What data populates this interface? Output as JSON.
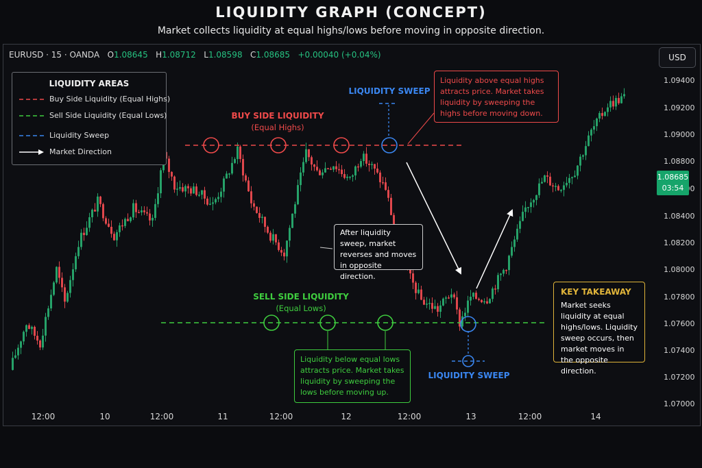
{
  "title": "LIQUIDITY GRAPH (CONCEPT)",
  "subtitle": "Market collects liquidity at equal highs/lows before moving in opposite direction.",
  "header": {
    "symbol": "EURUSD · 15 · OANDA",
    "o_label": "O",
    "o_value": "1.08645",
    "h_label": "H",
    "h_value": "1.08712",
    "l_label": "L",
    "l_value": "1.08598",
    "c_label": "C",
    "c_value": "1.08685",
    "change": "+0.00040 (+0.04%)",
    "currency": "USD"
  },
  "legend": {
    "title": "LIQUIDITY AREAS",
    "items": [
      {
        "label": "Buy Side Liquidity (Equal Highs)",
        "color": "#ef4a4a",
        "style": "dashed"
      },
      {
        "label": "Sell Side Liquidity (Equal Lows)",
        "color": "#3fce3f",
        "style": "dashed"
      },
      {
        "label": "Liquidity Sweep",
        "color": "#3a86f0",
        "style": "dashed"
      },
      {
        "label": "Market Direction",
        "color": "#ffffff",
        "style": "arrow"
      }
    ]
  },
  "annotations": {
    "buy_side_title": "BUY SIDE LIQUIDITY",
    "buy_side_sub": "(Equal Highs)",
    "sell_side_title": "SELL SIDE LIQUIDITY",
    "sell_side_sub": "(Equal Lows)",
    "sweep_top": "LIQUIDITY SWEEP",
    "sweep_bottom": "LIQUIDITY SWEEP",
    "top_note": "Liquidity above equal highs attracts price. Market takes liquidity by sweeping the highs before moving down.",
    "mid_note": "After liquidity sweep, market reverses and moves in opposite direction.",
    "bottom_note": "Liquidity below equal lows attracts price. Market takes liquidity by sweeping the lows before moving up.",
    "takeaway_title": "KEY TAKEAWAY",
    "takeaway_text": "Market seeks liquidity at equal highs/lows. Liquidity sweep occurs, then market moves in the opposite direction."
  },
  "price_tag": {
    "price": "1.08685",
    "timer": "03:54"
  },
  "colors": {
    "bull": "#26a269",
    "bear": "#e0474c",
    "buy_side": "#ef4a4a",
    "sell_side": "#3fce3f",
    "sweep": "#3a86f0",
    "takeaway": "#e0b43a",
    "price_tag": "#16a46a"
  },
  "chart_data": {
    "type": "candlestick",
    "y_ticks": [
      "1.09400",
      "1.09200",
      "1.09000",
      "1.08800",
      "1.08600",
      "1.08400",
      "1.08200",
      "1.08000",
      "1.07800",
      "1.07600",
      "1.07400",
      "1.07200",
      "1.07000"
    ],
    "x_ticks": [
      "12:00",
      "10",
      "12:00",
      "11",
      "12:00",
      "12",
      "12:00",
      "13",
      "12:00",
      "14"
    ],
    "ylim": [
      1.07,
      1.095
    ],
    "buy_side_liquidity_level": 1.0893,
    "sell_side_liquidity_level": 1.0761,
    "equal_highs_at": [
      "11 ~03:00",
      "11 ~14:00",
      "12 ~00:00",
      "12 ~14:00 (sweep)"
    ],
    "equal_lows_at": [
      "11 ~12:00",
      "12 ~00:00",
      "12 ~11:00",
      "13 ~00:00 (sweep)"
    ],
    "path": [
      [
        0,
        1.0725
      ],
      [
        6,
        1.076
      ],
      [
        11,
        1.0745
      ],
      [
        17,
        1.08
      ],
      [
        20,
        1.0775
      ],
      [
        25,
        1.082
      ],
      [
        32,
        1.085
      ],
      [
        38,
        1.0825
      ],
      [
        45,
        1.0845
      ],
      [
        52,
        1.0835
      ],
      [
        56,
        1.0885
      ],
      [
        60,
        1.0862
      ],
      [
        68,
        1.0858
      ],
      [
        74,
        1.0848
      ],
      [
        78,
        1.0864
      ],
      [
        83,
        1.0888
      ],
      [
        88,
        1.085
      ],
      [
        95,
        1.0825
      ],
      [
        100,
        1.0812
      ],
      [
        104,
        1.085
      ],
      [
        108,
        1.0886
      ],
      [
        112,
        1.0872
      ],
      [
        118,
        1.0878
      ],
      [
        124,
        1.0866
      ],
      [
        128,
        1.0884
      ],
      [
        132,
        1.0876
      ],
      [
        137,
        1.086
      ],
      [
        143,
        1.0805
      ],
      [
        150,
        1.0777
      ],
      [
        156,
        1.077
      ],
      [
        161,
        1.0783
      ],
      [
        164,
        1.076
      ],
      [
        168,
        1.0779
      ],
      [
        174,
        1.0778
      ],
      [
        181,
        1.0803
      ],
      [
        188,
        1.0845
      ],
      [
        195,
        1.0868
      ],
      [
        200,
        1.086
      ],
      [
        206,
        1.0873
      ],
      [
        212,
        1.0902
      ],
      [
        218,
        1.0922
      ],
      [
        224,
        1.0928
      ]
    ]
  }
}
